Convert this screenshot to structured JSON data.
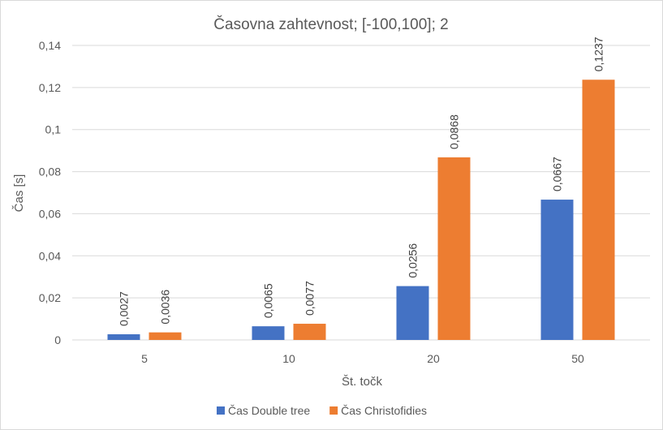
{
  "chart_data": {
    "type": "bar",
    "title": "Časovna zahtevnost; [-100,100]; 2",
    "xlabel": "Št. točk",
    "ylabel": "Čas [s]",
    "categories": [
      "5",
      "10",
      "20",
      "50"
    ],
    "series": [
      {
        "name": "Čas Double tree",
        "color": "#4472C4",
        "values": [
          0.0027,
          0.0065,
          0.0256,
          0.0667
        ],
        "labels": [
          "0,0027",
          "0,0065",
          "0,0256",
          "0,0667"
        ]
      },
      {
        "name": "Čas Christofidies",
        "color": "#ED7D31",
        "values": [
          0.0036,
          0.0077,
          0.0868,
          0.1237
        ],
        "labels": [
          "0,0036",
          "0,0077",
          "0,0868",
          "0,1237"
        ]
      }
    ],
    "ylim": [
      0,
      0.14
    ],
    "yticks": [
      0,
      0.02,
      0.04,
      0.06,
      0.08,
      0.1,
      0.12,
      0.14
    ],
    "ytick_labels": [
      "0",
      "0,02",
      "0,04",
      "0,06",
      "0,08",
      "0,1",
      "0,12",
      "0,14"
    ],
    "grid": true,
    "legend": "bottom"
  }
}
